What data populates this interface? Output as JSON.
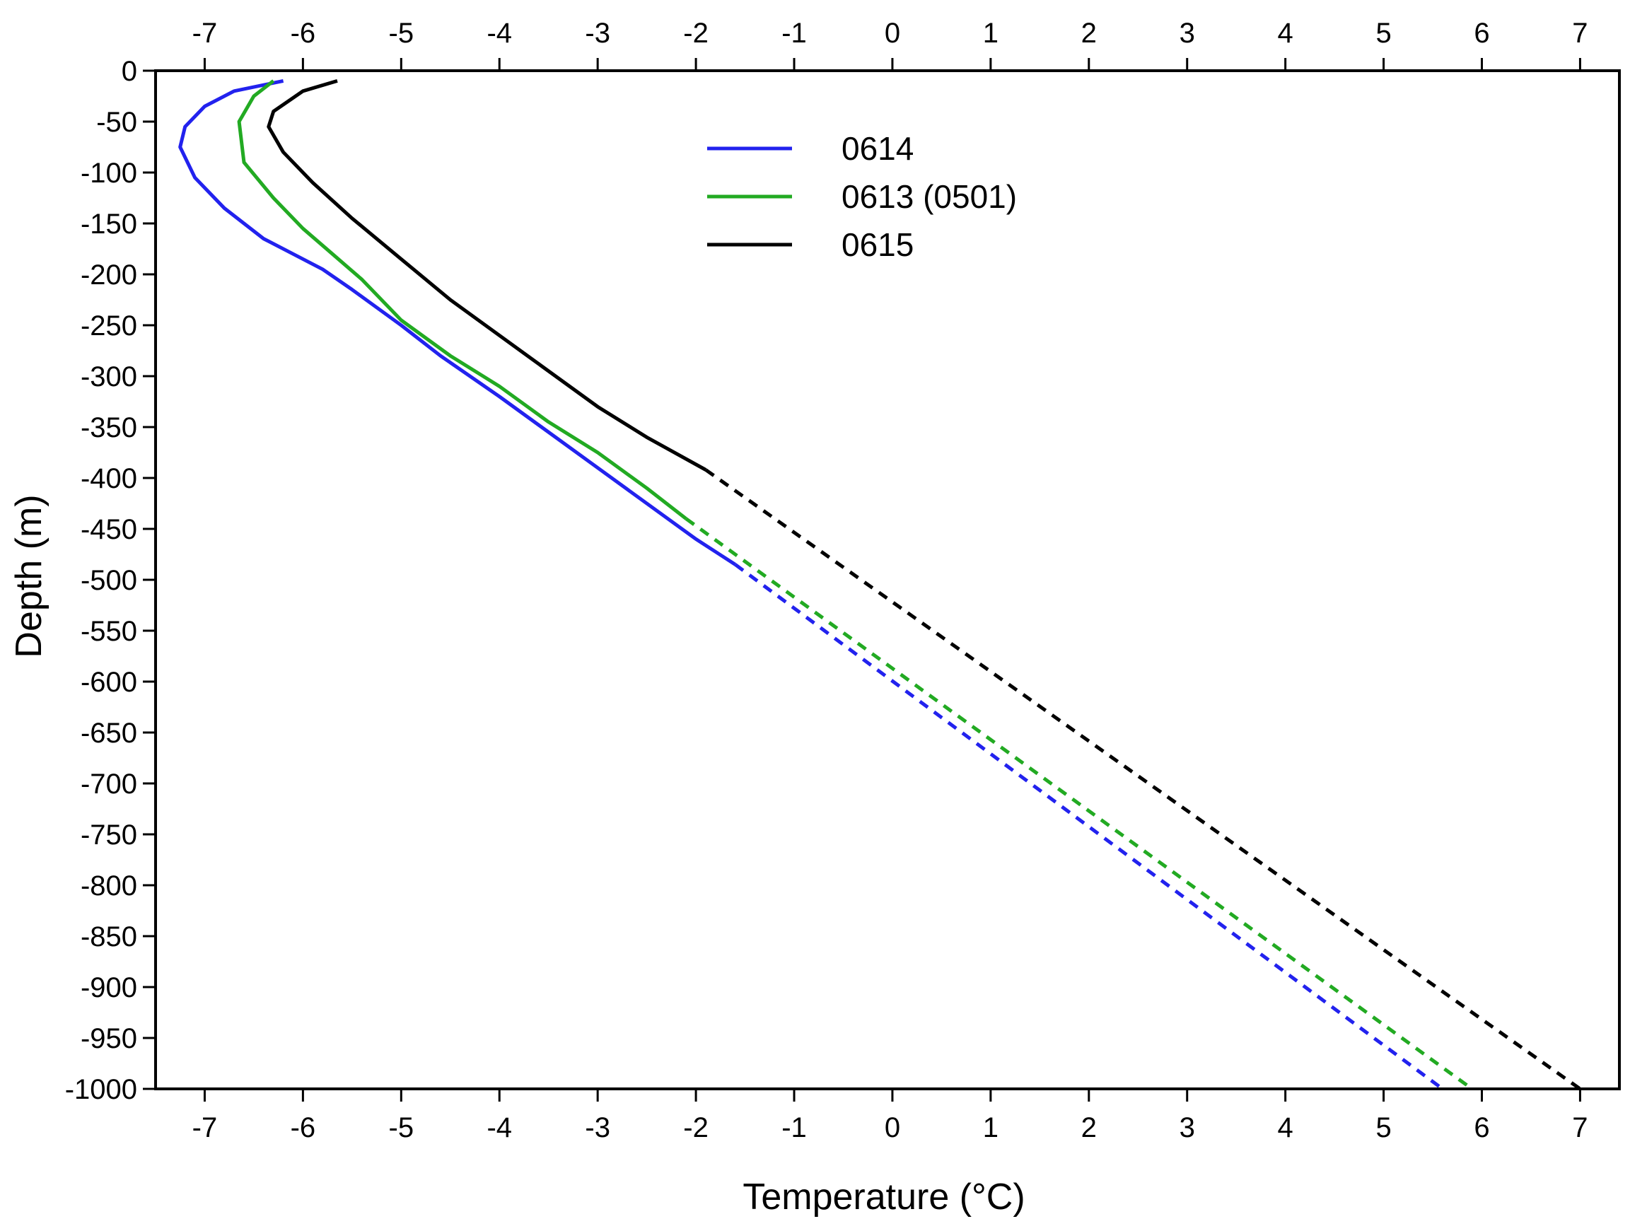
{
  "chart_data": {
    "type": "line",
    "title": "",
    "xlabel": "Temperature (°C)",
    "ylabel": "Depth (m)",
    "xlim": [
      -7.5,
      7.4
    ],
    "ylim": [
      -1000,
      0
    ],
    "x_ticks": [
      -7,
      -6,
      -5,
      -4,
      -3,
      -2,
      -1,
      0,
      1,
      2,
      3,
      4,
      5,
      6,
      7
    ],
    "y_ticks": [
      0,
      -50,
      -100,
      -150,
      -200,
      -250,
      -300,
      -350,
      -400,
      -450,
      -500,
      -550,
      -600,
      -650,
      -700,
      -750,
      -800,
      -850,
      -900,
      -950,
      -1000
    ],
    "x_axis_top": true,
    "grid": false,
    "legend_position": "top-center",
    "series": [
      {
        "name": "0614",
        "color": "#2222ee",
        "measured": [
          [
            -6.2,
            -10
          ],
          [
            -6.7,
            -20
          ],
          [
            -7.0,
            -35
          ],
          [
            -7.2,
            -55
          ],
          [
            -7.25,
            -75
          ],
          [
            -7.1,
            -105
          ],
          [
            -6.8,
            -135
          ],
          [
            -6.4,
            -165
          ],
          [
            -6.1,
            -180
          ],
          [
            -5.8,
            -195
          ],
          [
            -5.5,
            -215
          ],
          [
            -5.0,
            -250
          ],
          [
            -4.6,
            -280
          ],
          [
            -4.0,
            -320
          ],
          [
            -3.5,
            -355
          ],
          [
            -3.0,
            -390
          ],
          [
            -2.5,
            -425
          ],
          [
            -2.0,
            -460
          ],
          [
            -1.6,
            -485
          ]
        ],
        "extrapolated": [
          [
            -1.6,
            -485
          ],
          [
            5.6,
            -1000
          ]
        ]
      },
      {
        "name": "0613 (0501)",
        "color": "#22aa22",
        "measured": [
          [
            -6.3,
            -10
          ],
          [
            -6.5,
            -25
          ],
          [
            -6.65,
            -50
          ],
          [
            -6.6,
            -90
          ],
          [
            -6.3,
            -125
          ],
          [
            -6.0,
            -155
          ],
          [
            -5.7,
            -180
          ],
          [
            -5.4,
            -205
          ],
          [
            -5.0,
            -245
          ],
          [
            -4.5,
            -280
          ],
          [
            -4.0,
            -310
          ],
          [
            -3.5,
            -345
          ],
          [
            -3.0,
            -375
          ],
          [
            -2.5,
            -410
          ],
          [
            -2.1,
            -440
          ]
        ],
        "extrapolated": [
          [
            -2.1,
            -440
          ],
          [
            5.9,
            -1000
          ]
        ]
      },
      {
        "name": "0615",
        "color": "#000000",
        "measured": [
          [
            -5.65,
            -10
          ],
          [
            -6.0,
            -20
          ],
          [
            -6.3,
            -40
          ],
          [
            -6.35,
            -55
          ],
          [
            -6.2,
            -80
          ],
          [
            -5.9,
            -110
          ],
          [
            -5.5,
            -145
          ],
          [
            -5.0,
            -185
          ],
          [
            -4.5,
            -225
          ],
          [
            -4.0,
            -260
          ],
          [
            -3.5,
            -295
          ],
          [
            -3.0,
            -330
          ],
          [
            -2.5,
            -360
          ],
          [
            -1.9,
            -392
          ]
        ],
        "extrapolated": [
          [
            -1.9,
            -392
          ],
          [
            7.0,
            -1000
          ]
        ]
      }
    ]
  }
}
